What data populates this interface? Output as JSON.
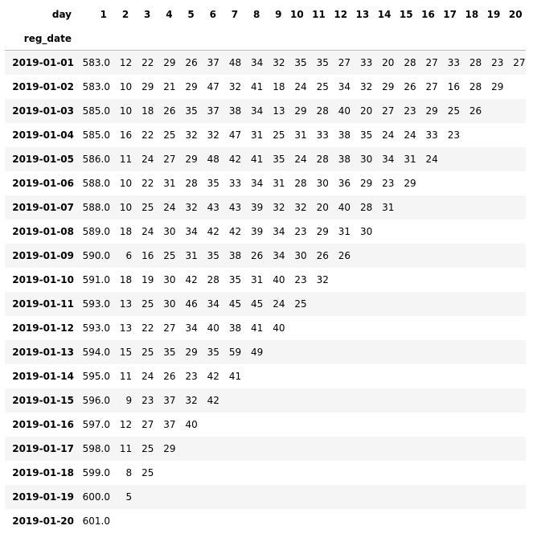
{
  "table": {
    "columns_label": "day",
    "index_label": "reg_date",
    "columns": [
      "1",
      "2",
      "3",
      "4",
      "5",
      "6",
      "7",
      "8",
      "9",
      "10",
      "11",
      "12",
      "13",
      "14",
      "15",
      "16",
      "17",
      "18",
      "19",
      "20"
    ],
    "rows": [
      {
        "date": "2019-01-01",
        "values": [
          "583.0",
          "12",
          "22",
          "29",
          "26",
          "37",
          "48",
          "34",
          "32",
          "35",
          "35",
          "27",
          "33",
          "20",
          "28",
          "27",
          "33",
          "28",
          "23",
          "27"
        ]
      },
      {
        "date": "2019-01-02",
        "values": [
          "583.0",
          "10",
          "29",
          "21",
          "29",
          "47",
          "32",
          "41",
          "18",
          "24",
          "25",
          "34",
          "32",
          "29",
          "26",
          "27",
          "16",
          "28",
          "29",
          ""
        ]
      },
      {
        "date": "2019-01-03",
        "values": [
          "585.0",
          "10",
          "18",
          "26",
          "35",
          "37",
          "38",
          "34",
          "13",
          "29",
          "28",
          "40",
          "20",
          "27",
          "23",
          "29",
          "25",
          "26",
          "",
          ""
        ]
      },
      {
        "date": "2019-01-04",
        "values": [
          "585.0",
          "16",
          "22",
          "25",
          "32",
          "32",
          "47",
          "31",
          "25",
          "31",
          "33",
          "38",
          "35",
          "24",
          "24",
          "33",
          "23",
          "",
          "",
          ""
        ]
      },
      {
        "date": "2019-01-05",
        "values": [
          "586.0",
          "11",
          "24",
          "27",
          "29",
          "48",
          "42",
          "41",
          "35",
          "24",
          "28",
          "38",
          "30",
          "34",
          "31",
          "24",
          "",
          "",
          "",
          ""
        ]
      },
      {
        "date": "2019-01-06",
        "values": [
          "588.0",
          "10",
          "22",
          "31",
          "28",
          "35",
          "33",
          "34",
          "31",
          "28",
          "30",
          "36",
          "29",
          "23",
          "29",
          "",
          "",
          "",
          "",
          ""
        ]
      },
      {
        "date": "2019-01-07",
        "values": [
          "588.0",
          "10",
          "25",
          "24",
          "32",
          "43",
          "43",
          "39",
          "32",
          "32",
          "20",
          "40",
          "28",
          "31",
          "",
          "",
          "",
          "",
          "",
          ""
        ]
      },
      {
        "date": "2019-01-08",
        "values": [
          "589.0",
          "18",
          "24",
          "30",
          "34",
          "42",
          "42",
          "39",
          "34",
          "23",
          "29",
          "31",
          "30",
          "",
          "",
          "",
          "",
          "",
          "",
          ""
        ]
      },
      {
        "date": "2019-01-09",
        "values": [
          "590.0",
          "6",
          "16",
          "25",
          "31",
          "35",
          "38",
          "26",
          "34",
          "30",
          "26",
          "26",
          "",
          "",
          "",
          "",
          "",
          "",
          "",
          ""
        ]
      },
      {
        "date": "2019-01-10",
        "values": [
          "591.0",
          "18",
          "19",
          "30",
          "42",
          "28",
          "35",
          "31",
          "40",
          "23",
          "32",
          "",
          "",
          "",
          "",
          "",
          "",
          "",
          "",
          ""
        ]
      },
      {
        "date": "2019-01-11",
        "values": [
          "593.0",
          "13",
          "25",
          "30",
          "46",
          "34",
          "45",
          "45",
          "24",
          "25",
          "",
          "",
          "",
          "",
          "",
          "",
          "",
          "",
          "",
          ""
        ]
      },
      {
        "date": "2019-01-12",
        "values": [
          "593.0",
          "13",
          "22",
          "27",
          "34",
          "40",
          "38",
          "41",
          "40",
          "",
          "",
          "",
          "",
          "",
          "",
          "",
          "",
          "",
          "",
          ""
        ]
      },
      {
        "date": "2019-01-13",
        "values": [
          "594.0",
          "15",
          "25",
          "35",
          "29",
          "35",
          "59",
          "49",
          "",
          "",
          "",
          "",
          "",
          "",
          "",
          "",
          "",
          "",
          "",
          ""
        ]
      },
      {
        "date": "2019-01-14",
        "values": [
          "595.0",
          "11",
          "24",
          "26",
          "23",
          "42",
          "41",
          "",
          "",
          "",
          "",
          "",
          "",
          "",
          "",
          "",
          "",
          "",
          "",
          ""
        ]
      },
      {
        "date": "2019-01-15",
        "values": [
          "596.0",
          "9",
          "23",
          "37",
          "32",
          "42",
          "",
          "",
          "",
          "",
          "",
          "",
          "",
          "",
          "",
          "",
          "",
          "",
          "",
          ""
        ]
      },
      {
        "date": "2019-01-16",
        "values": [
          "597.0",
          "12",
          "27",
          "37",
          "40",
          "",
          "",
          "",
          "",
          "",
          "",
          "",
          "",
          "",
          "",
          "",
          "",
          "",
          "",
          ""
        ]
      },
      {
        "date": "2019-01-17",
        "values": [
          "598.0",
          "11",
          "25",
          "29",
          "",
          "",
          "",
          "",
          "",
          "",
          "",
          "",
          "",
          "",
          "",
          "",
          "",
          "",
          "",
          ""
        ]
      },
      {
        "date": "2019-01-18",
        "values": [
          "599.0",
          "8",
          "25",
          "",
          "",
          "",
          "",
          "",
          "",
          "",
          "",
          "",
          "",
          "",
          "",
          "",
          "",
          "",
          "",
          ""
        ]
      },
      {
        "date": "2019-01-19",
        "values": [
          "600.0",
          "5",
          "",
          "",
          "",
          "",
          "",
          "",
          "",
          "",
          "",
          "",
          "",
          "",
          "",
          "",
          "",
          "",
          "",
          ""
        ]
      },
      {
        "date": "2019-01-20",
        "values": [
          "601.0",
          "",
          "",
          "",
          "",
          "",
          "",
          "",
          "",
          "",
          "",
          "",
          "",
          "",
          "",
          "",
          "",
          "",
          "",
          ""
        ]
      }
    ]
  }
}
